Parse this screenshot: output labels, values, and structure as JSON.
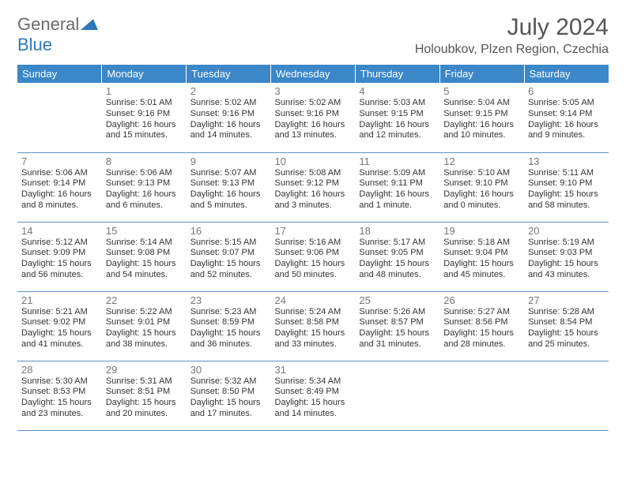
{
  "logo": {
    "general": "General",
    "blue": "Blue"
  },
  "title": "July 2024",
  "location": "Holoubkov, Plzen Region, Czechia",
  "header_bg": "#3b87c8",
  "days": [
    "Sunday",
    "Monday",
    "Tuesday",
    "Wednesday",
    "Thursday",
    "Friday",
    "Saturday"
  ],
  "weeks": [
    [
      null,
      {
        "n": "1",
        "sr": "Sunrise: 5:01 AM",
        "ss": "Sunset: 9:16 PM",
        "d1": "Daylight: 16 hours",
        "d2": "and 15 minutes."
      },
      {
        "n": "2",
        "sr": "Sunrise: 5:02 AM",
        "ss": "Sunset: 9:16 PM",
        "d1": "Daylight: 16 hours",
        "d2": "and 14 minutes."
      },
      {
        "n": "3",
        "sr": "Sunrise: 5:02 AM",
        "ss": "Sunset: 9:16 PM",
        "d1": "Daylight: 16 hours",
        "d2": "and 13 minutes."
      },
      {
        "n": "4",
        "sr": "Sunrise: 5:03 AM",
        "ss": "Sunset: 9:15 PM",
        "d1": "Daylight: 16 hours",
        "d2": "and 12 minutes."
      },
      {
        "n": "5",
        "sr": "Sunrise: 5:04 AM",
        "ss": "Sunset: 9:15 PM",
        "d1": "Daylight: 16 hours",
        "d2": "and 10 minutes."
      },
      {
        "n": "6",
        "sr": "Sunrise: 5:05 AM",
        "ss": "Sunset: 9:14 PM",
        "d1": "Daylight: 16 hours",
        "d2": "and 9 minutes."
      }
    ],
    [
      {
        "n": "7",
        "sr": "Sunrise: 5:06 AM",
        "ss": "Sunset: 9:14 PM",
        "d1": "Daylight: 16 hours",
        "d2": "and 8 minutes."
      },
      {
        "n": "8",
        "sr": "Sunrise: 5:06 AM",
        "ss": "Sunset: 9:13 PM",
        "d1": "Daylight: 16 hours",
        "d2": "and 6 minutes."
      },
      {
        "n": "9",
        "sr": "Sunrise: 5:07 AM",
        "ss": "Sunset: 9:13 PM",
        "d1": "Daylight: 16 hours",
        "d2": "and 5 minutes."
      },
      {
        "n": "10",
        "sr": "Sunrise: 5:08 AM",
        "ss": "Sunset: 9:12 PM",
        "d1": "Daylight: 16 hours",
        "d2": "and 3 minutes."
      },
      {
        "n": "11",
        "sr": "Sunrise: 5:09 AM",
        "ss": "Sunset: 9:11 PM",
        "d1": "Daylight: 16 hours",
        "d2": "and 1 minute."
      },
      {
        "n": "12",
        "sr": "Sunrise: 5:10 AM",
        "ss": "Sunset: 9:10 PM",
        "d1": "Daylight: 16 hours",
        "d2": "and 0 minutes."
      },
      {
        "n": "13",
        "sr": "Sunrise: 5:11 AM",
        "ss": "Sunset: 9:10 PM",
        "d1": "Daylight: 15 hours",
        "d2": "and 58 minutes."
      }
    ],
    [
      {
        "n": "14",
        "sr": "Sunrise: 5:12 AM",
        "ss": "Sunset: 9:09 PM",
        "d1": "Daylight: 15 hours",
        "d2": "and 56 minutes."
      },
      {
        "n": "15",
        "sr": "Sunrise: 5:14 AM",
        "ss": "Sunset: 9:08 PM",
        "d1": "Daylight: 15 hours",
        "d2": "and 54 minutes."
      },
      {
        "n": "16",
        "sr": "Sunrise: 5:15 AM",
        "ss": "Sunset: 9:07 PM",
        "d1": "Daylight: 15 hours",
        "d2": "and 52 minutes."
      },
      {
        "n": "17",
        "sr": "Sunrise: 5:16 AM",
        "ss": "Sunset: 9:06 PM",
        "d1": "Daylight: 15 hours",
        "d2": "and 50 minutes."
      },
      {
        "n": "18",
        "sr": "Sunrise: 5:17 AM",
        "ss": "Sunset: 9:05 PM",
        "d1": "Daylight: 15 hours",
        "d2": "and 48 minutes."
      },
      {
        "n": "19",
        "sr": "Sunrise: 5:18 AM",
        "ss": "Sunset: 9:04 PM",
        "d1": "Daylight: 15 hours",
        "d2": "and 45 minutes."
      },
      {
        "n": "20",
        "sr": "Sunrise: 5:19 AM",
        "ss": "Sunset: 9:03 PM",
        "d1": "Daylight: 15 hours",
        "d2": "and 43 minutes."
      }
    ],
    [
      {
        "n": "21",
        "sr": "Sunrise: 5:21 AM",
        "ss": "Sunset: 9:02 PM",
        "d1": "Daylight: 15 hours",
        "d2": "and 41 minutes."
      },
      {
        "n": "22",
        "sr": "Sunrise: 5:22 AM",
        "ss": "Sunset: 9:01 PM",
        "d1": "Daylight: 15 hours",
        "d2": "and 38 minutes."
      },
      {
        "n": "23",
        "sr": "Sunrise: 5:23 AM",
        "ss": "Sunset: 8:59 PM",
        "d1": "Daylight: 15 hours",
        "d2": "and 36 minutes."
      },
      {
        "n": "24",
        "sr": "Sunrise: 5:24 AM",
        "ss": "Sunset: 8:58 PM",
        "d1": "Daylight: 15 hours",
        "d2": "and 33 minutes."
      },
      {
        "n": "25",
        "sr": "Sunrise: 5:26 AM",
        "ss": "Sunset: 8:57 PM",
        "d1": "Daylight: 15 hours",
        "d2": "and 31 minutes."
      },
      {
        "n": "26",
        "sr": "Sunrise: 5:27 AM",
        "ss": "Sunset: 8:56 PM",
        "d1": "Daylight: 15 hours",
        "d2": "and 28 minutes."
      },
      {
        "n": "27",
        "sr": "Sunrise: 5:28 AM",
        "ss": "Sunset: 8:54 PM",
        "d1": "Daylight: 15 hours",
        "d2": "and 25 minutes."
      }
    ],
    [
      {
        "n": "28",
        "sr": "Sunrise: 5:30 AM",
        "ss": "Sunset: 8:53 PM",
        "d1": "Daylight: 15 hours",
        "d2": "and 23 minutes."
      },
      {
        "n": "29",
        "sr": "Sunrise: 5:31 AM",
        "ss": "Sunset: 8:51 PM",
        "d1": "Daylight: 15 hours",
        "d2": "and 20 minutes."
      },
      {
        "n": "30",
        "sr": "Sunrise: 5:32 AM",
        "ss": "Sunset: 8:50 PM",
        "d1": "Daylight: 15 hours",
        "d2": "and 17 minutes."
      },
      {
        "n": "31",
        "sr": "Sunrise: 5:34 AM",
        "ss": "Sunset: 8:49 PM",
        "d1": "Daylight: 15 hours",
        "d2": "and 14 minutes."
      },
      null,
      null,
      null
    ]
  ]
}
